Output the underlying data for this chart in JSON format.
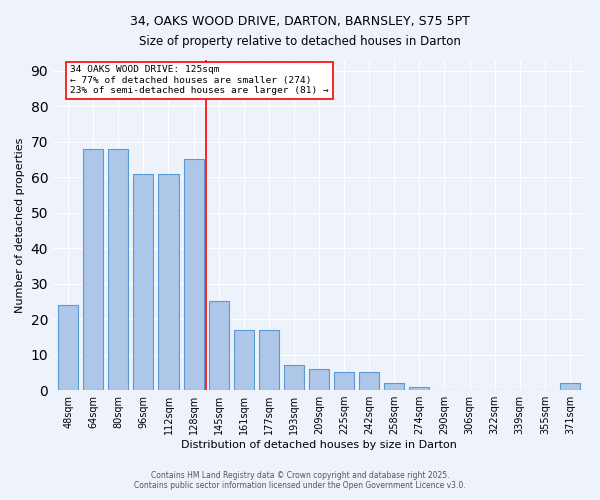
{
  "title_line1": "34, OAKS WOOD DRIVE, DARTON, BARNSLEY, S75 5PT",
  "title_line2": "Size of property relative to detached houses in Darton",
  "xlabel": "Distribution of detached houses by size in Darton",
  "ylabel": "Number of detached properties",
  "categories": [
    "48sqm",
    "64sqm",
    "80sqm",
    "96sqm",
    "112sqm",
    "128sqm",
    "145sqm",
    "161sqm",
    "177sqm",
    "193sqm",
    "209sqm",
    "225sqm",
    "242sqm",
    "258sqm",
    "274sqm",
    "290sqm",
    "306sqm",
    "322sqm",
    "339sqm",
    "355sqm",
    "371sqm"
  ],
  "values": [
    24,
    68,
    68,
    61,
    61,
    65,
    25,
    17,
    17,
    7,
    6,
    5,
    5,
    2,
    1,
    0,
    0,
    0,
    0,
    0,
    2
  ],
  "bar_color": "#aec6e8",
  "bar_edge_color": "#5b9bd5",
  "bar_width": 0.8,
  "red_line_x": 5.5,
  "annotation_line1": "34 OAKS WOOD DRIVE: 125sqm",
  "annotation_line2": "← 77% of detached houses are smaller (274)",
  "annotation_line3": "23% of semi-detached houses are larger (81) →",
  "ylim": [
    0,
    93
  ],
  "background_color": "#eef2fb",
  "grid_color": "#ffffff",
  "footer_line1": "Contains HM Land Registry data © Crown copyright and database right 2025.",
  "footer_line2": "Contains public sector information licensed under the Open Government Licence v3.0."
}
